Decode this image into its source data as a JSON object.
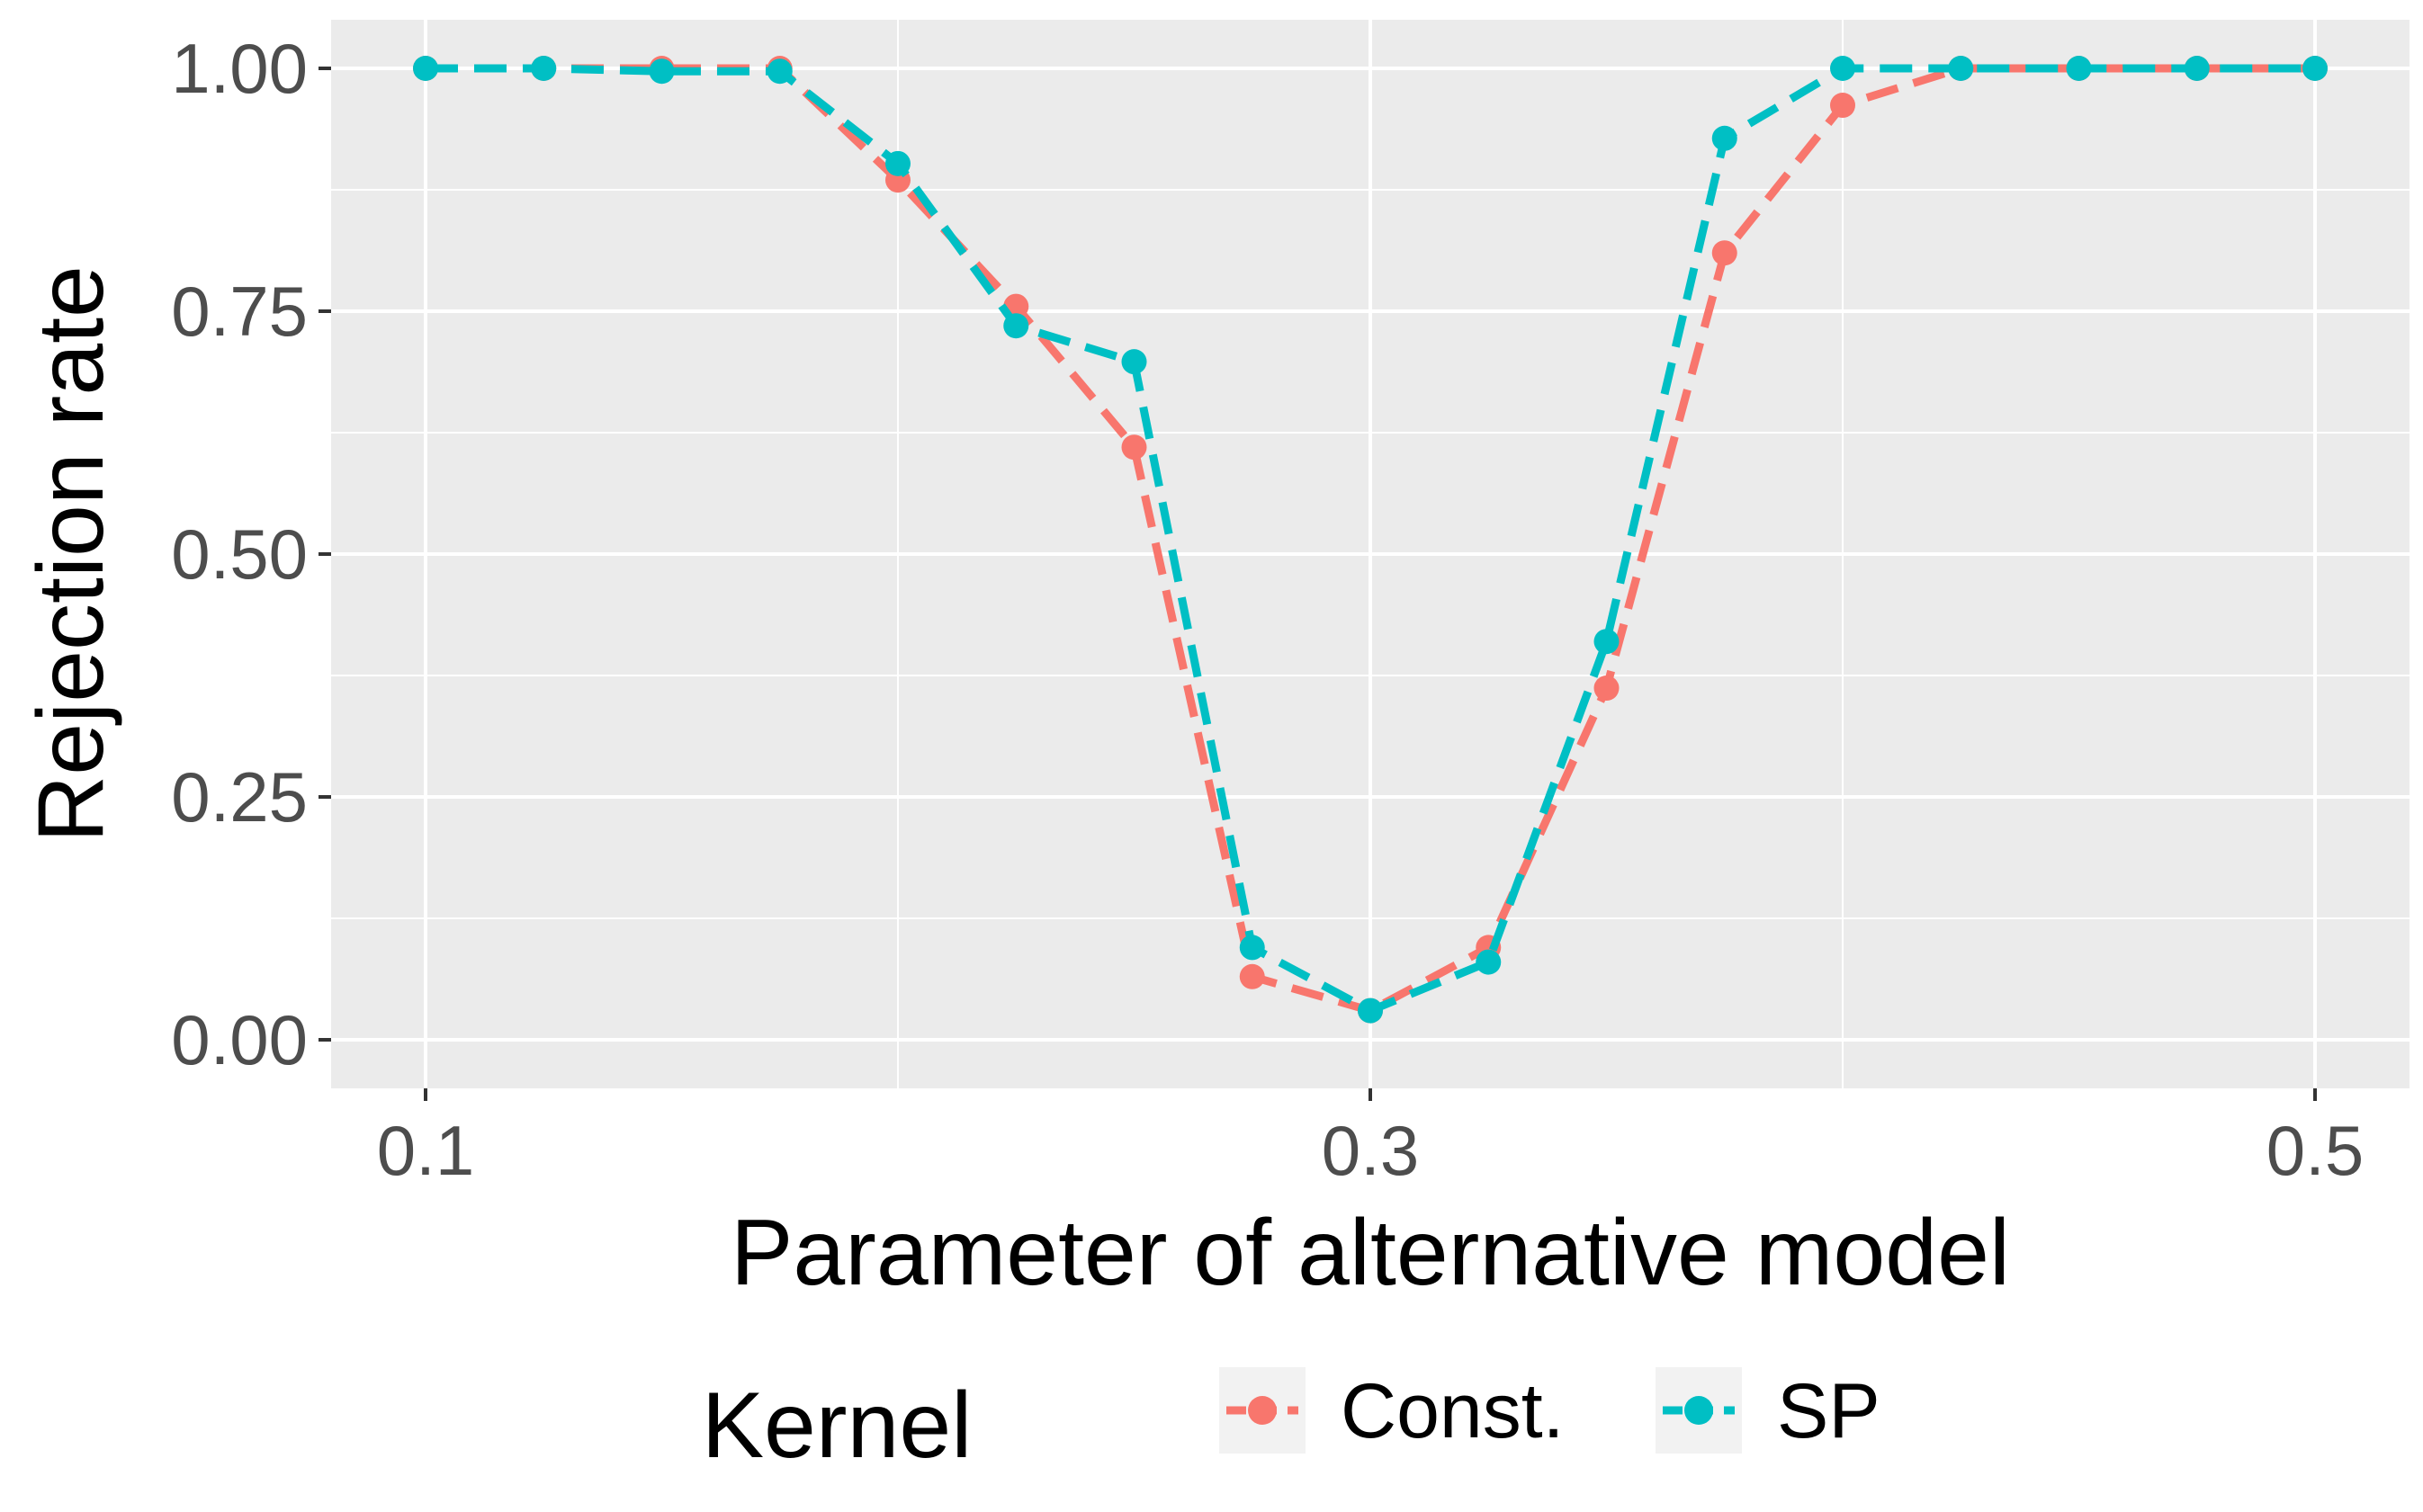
{
  "chart_data": {
    "type": "line",
    "xlabel": "Parameter of alternative model",
    "ylabel": "Rejection rate",
    "xlim": [
      0.08,
      0.52
    ],
    "ylim": [
      -0.05,
      1.05
    ],
    "x_ticks": [
      0.1,
      0.3,
      0.5
    ],
    "x_tick_labels": [
      "0.1",
      "0.3",
      "0.5"
    ],
    "y_ticks": [
      0.0,
      0.25,
      0.5,
      0.75,
      1.0
    ],
    "y_tick_labels": [
      "0.00",
      "0.25",
      "0.50",
      "0.75",
      "1.00"
    ],
    "grid": true,
    "legend": {
      "title": "Kernel",
      "position": "bottom"
    },
    "x": [
      0.1,
      0.125,
      0.15,
      0.175,
      0.2,
      0.225,
      0.25,
      0.275,
      0.3,
      0.325,
      0.35,
      0.375,
      0.4,
      0.425,
      0.45,
      0.475,
      0.5
    ],
    "series": [
      {
        "name": "Const.",
        "color": "#F8766D",
        "values": [
          1.0,
          1.0,
          1.0,
          1.0,
          0.885,
          0.755,
          0.61,
          0.065,
          0.03,
          0.095,
          0.362,
          0.81,
          0.962,
          1.0,
          1.0,
          1.0,
          1.0
        ]
      },
      {
        "name": "SP",
        "color": "#00BFC4",
        "values": [
          1.0,
          1.0,
          0.997,
          0.997,
          0.902,
          0.735,
          0.698,
          0.095,
          0.03,
          0.08,
          0.41,
          0.928,
          1.0,
          1.0,
          1.0,
          1.0,
          1.0
        ]
      }
    ]
  }
}
